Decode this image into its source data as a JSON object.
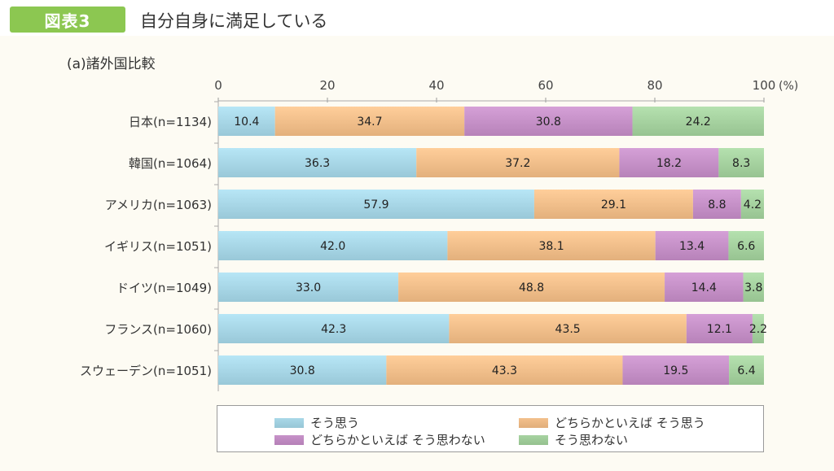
{
  "header": {
    "badge": "図表3",
    "title": "自分自身に満足している"
  },
  "chart_data": {
    "type": "bar",
    "orientation": "horizontal",
    "stacked": true,
    "title": "(a)諸外国比較",
    "xlim": [
      0,
      100
    ],
    "x_ticks": [
      "0",
      "20",
      "40",
      "60",
      "80",
      "100"
    ],
    "unit_label": "(%)",
    "categories": [
      "日本(n=1134)",
      "韓国(n=1064)",
      "アメリカ(n=1063)",
      "イギリス(n=1051)",
      "ドイツ(n=1049)",
      "フランス(n=1060)",
      "スウェーデン(n=1051)"
    ],
    "series": [
      {
        "name": "そう思う",
        "color": "#a9d8e8",
        "values": [
          10.4,
          36.3,
          57.9,
          42.0,
          33.0,
          42.3,
          30.8
        ]
      },
      {
        "name": "どちらかといえば そう思う",
        "color": "#f3c08c",
        "values": [
          34.7,
          37.2,
          29.1,
          38.1,
          48.8,
          43.5,
          43.3
        ]
      },
      {
        "name": "どちらかといえば そう思わない",
        "color": "#c792c9",
        "values": [
          30.8,
          18.2,
          8.8,
          13.4,
          14.4,
          12.1,
          19.5
        ]
      },
      {
        "name": "そう思わない",
        "color": "#a7d3a1",
        "values": [
          24.2,
          8.3,
          4.2,
          6.6,
          3.8,
          2.2,
          6.4
        ]
      }
    ],
    "legend_position": "bottom",
    "grid": false
  }
}
